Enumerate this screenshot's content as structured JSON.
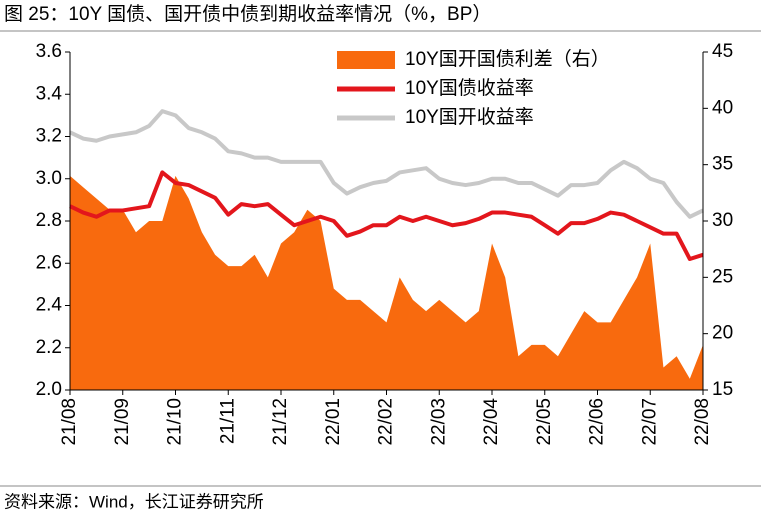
{
  "chart_data": {
    "type": "line",
    "title": "图 25：10Y 国债、国开债中债到期收益率情况（%，BP）",
    "source": "资料来源：Wind，长江证券研究所",
    "categories": [
      "21/08",
      null,
      null,
      null,
      "21/09",
      null,
      null,
      null,
      "21/10",
      null,
      null,
      null,
      "21/11",
      null,
      null,
      null,
      "21/12",
      null,
      null,
      null,
      "22/01",
      null,
      null,
      null,
      "22/02",
      null,
      null,
      null,
      "22/03",
      null,
      null,
      null,
      "22/04",
      null,
      null,
      null,
      "22/05",
      null,
      null,
      null,
      "22/06",
      null,
      null,
      null,
      "22/07",
      null,
      null,
      null,
      "22/08"
    ],
    "series": [
      {
        "name": "10Y国开国债利差（右）",
        "type": "area",
        "axis": "y2",
        "color": "#f86a0e",
        "values": [
          34,
          33,
          32,
          31,
          31,
          29,
          30,
          30,
          34,
          32,
          29,
          27,
          26,
          26,
          27,
          25,
          28,
          29,
          31,
          30,
          24,
          23,
          23,
          22,
          21,
          25,
          23,
          22,
          23,
          22,
          21,
          22,
          28,
          25,
          18,
          19,
          19,
          18,
          20,
          22,
          21,
          21,
          23,
          25,
          28,
          17,
          18,
          16,
          19
        ]
      },
      {
        "name": "10Y国债收益率",
        "type": "line",
        "color": "#e3161c",
        "values": [
          2.87,
          2.84,
          2.82,
          2.85,
          2.85,
          2.86,
          2.87,
          3.03,
          2.98,
          2.97,
          2.94,
          2.91,
          2.83,
          2.88,
          2.87,
          2.88,
          2.83,
          2.78,
          2.8,
          2.82,
          2.8,
          2.73,
          2.75,
          2.78,
          2.78,
          2.82,
          2.8,
          2.82,
          2.8,
          2.78,
          2.79,
          2.81,
          2.84,
          2.84,
          2.83,
          2.82,
          2.78,
          2.74,
          2.79,
          2.79,
          2.81,
          2.84,
          2.83,
          2.8,
          2.77,
          2.74,
          2.74,
          2.62,
          2.64
        ]
      },
      {
        "name": "10Y国开收益率",
        "type": "line",
        "color": "#c8c8c8",
        "values": [
          3.22,
          3.19,
          3.18,
          3.2,
          3.21,
          3.22,
          3.25,
          3.32,
          3.3,
          3.24,
          3.22,
          3.19,
          3.13,
          3.12,
          3.1,
          3.1,
          3.08,
          3.08,
          3.08,
          3.08,
          2.98,
          2.93,
          2.96,
          2.98,
          2.99,
          3.03,
          3.04,
          3.05,
          3.0,
          2.98,
          2.97,
          2.98,
          3.0,
          3.0,
          2.98,
          2.98,
          2.95,
          2.92,
          2.97,
          2.97,
          2.98,
          3.04,
          3.08,
          3.05,
          3.0,
          2.98,
          2.89,
          2.82,
          2.85
        ]
      }
    ],
    "ylim": [
      2.0,
      3.6
    ],
    "yticks": [
      {
        "value": 2,
        "label": "2.0"
      },
      2.2,
      2.4,
      2.6,
      2.8,
      {
        "value": 3,
        "label": "3.0"
      },
      3.2,
      3.4,
      3.6
    ],
    "y2lim": [
      15,
      45
    ],
    "y2ticks": [
      15,
      20,
      25,
      30,
      35,
      40,
      45
    ],
    "legend": "top-right",
    "grid": false
  }
}
